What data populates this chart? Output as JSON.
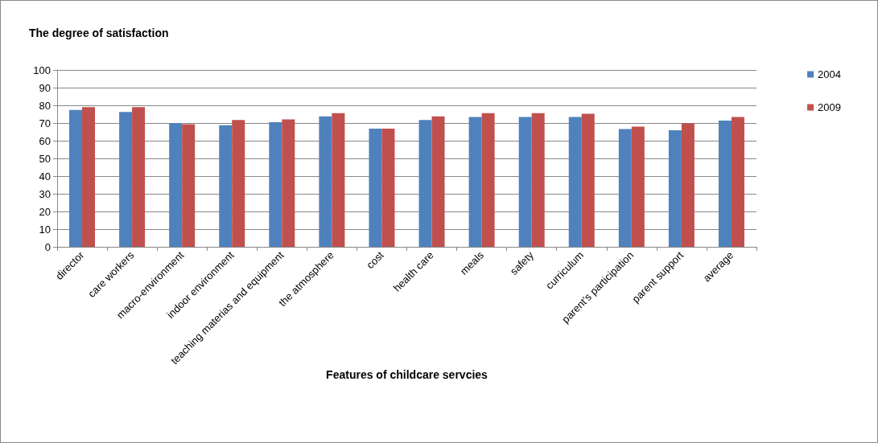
{
  "chart_data": {
    "type": "bar",
    "title": "The degree of satisfaction",
    "xlabel": "Features of childcare servcies",
    "categories": [
      "director",
      "care workers",
      "macro-environment",
      "indoor environment",
      "teaching materias and equipment",
      "the atmosphere",
      "cost",
      "health care",
      "meals",
      "safety",
      "curriculum",
      "parent's participation",
      "parent support",
      "average"
    ],
    "series": [
      {
        "name": "2004",
        "color": "#4f81bd",
        "values": [
          77.4,
          76.2,
          69.9,
          68.7,
          70.4,
          73.7,
          66.8,
          71.7,
          73.4,
          73.4,
          73.4,
          66.6,
          65.9,
          71.4
        ]
      },
      {
        "name": "2009",
        "color": "#c0504d",
        "values": [
          79,
          79,
          69.3,
          71.7,
          72,
          75.6,
          66.8,
          73.7,
          75.6,
          75.6,
          75.2,
          68,
          69.9,
          73.4
        ]
      }
    ],
    "ylim": [
      0,
      100
    ],
    "yticks": [
      0,
      10,
      20,
      30,
      40,
      50,
      60,
      70,
      80,
      90,
      100
    ],
    "grid": "y",
    "legend": "top right"
  }
}
